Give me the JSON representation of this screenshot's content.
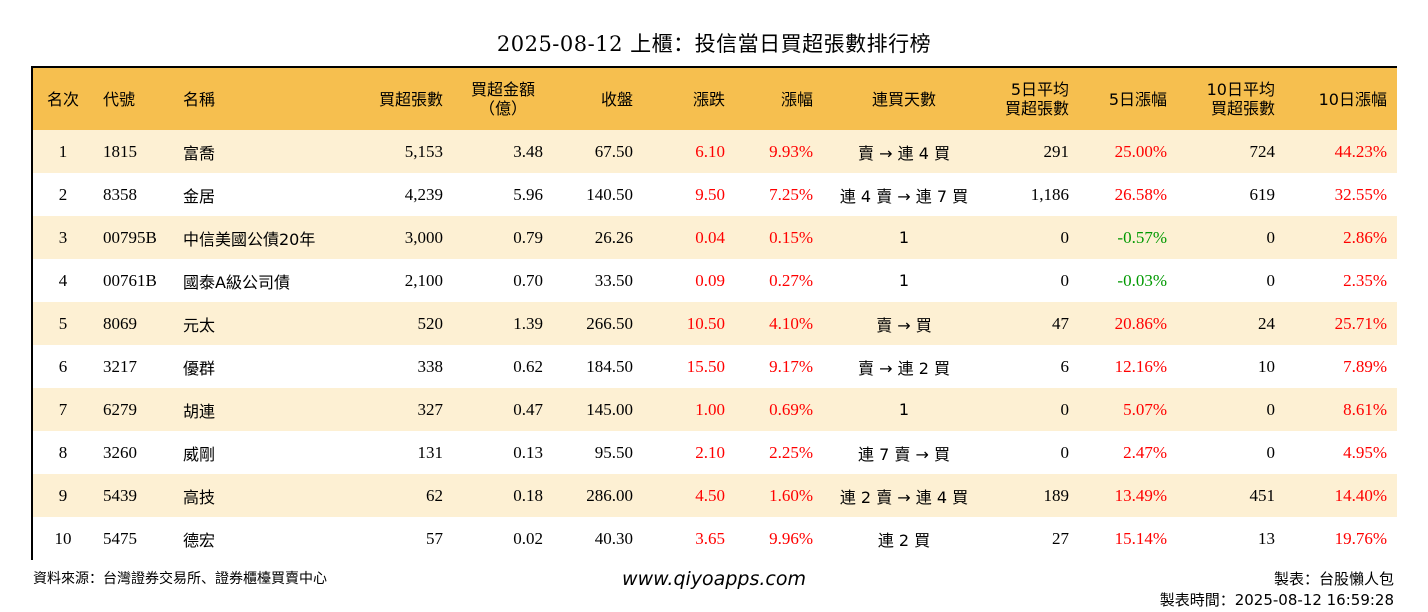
{
  "title": "2025-08-12 上櫃：投信當日買超張數排行榜",
  "headers": {
    "rank": "名次",
    "code": "代號",
    "name": "名稱",
    "buy_lots": "買超張數",
    "buy_amount_1": "買超金額",
    "buy_amount_2": "（億）",
    "close": "收盤",
    "change": "漲跌",
    "pct": "漲幅",
    "streak": "連買天數",
    "avg5_1": "5日平均",
    "avg5_2": "買超張數",
    "pct5": "5日漲幅",
    "avg10_1": "10日平均",
    "avg10_2": "買超張數",
    "pct10": "10日漲幅"
  },
  "rows": [
    {
      "rank": "1",
      "code": "1815",
      "name": "富喬",
      "buy_lots": "5,153",
      "amount": "3.48",
      "close": "67.50",
      "change": "6.10",
      "pct": "9.93%",
      "streak": "賣 → 連 4 買",
      "avg5": "291",
      "pct5": "25.00%",
      "avg10": "724",
      "pct10": "44.23%",
      "pct5_color": "red"
    },
    {
      "rank": "2",
      "code": "8358",
      "name": "金居",
      "buy_lots": "4,239",
      "amount": "5.96",
      "close": "140.50",
      "change": "9.50",
      "pct": "7.25%",
      "streak": "連 4 賣 → 連 7 買",
      "avg5": "1,186",
      "pct5": "26.58%",
      "avg10": "619",
      "pct10": "32.55%",
      "pct5_color": "red"
    },
    {
      "rank": "3",
      "code": "00795B",
      "name": "中信美國公債20年",
      "buy_lots": "3,000",
      "amount": "0.79",
      "close": "26.26",
      "change": "0.04",
      "pct": "0.15%",
      "streak": "1",
      "avg5": "0",
      "pct5": "-0.57%",
      "avg10": "0",
      "pct10": "2.86%",
      "pct5_color": "green"
    },
    {
      "rank": "4",
      "code": "00761B",
      "name": "國泰A級公司債",
      "buy_lots": "2,100",
      "amount": "0.70",
      "close": "33.50",
      "change": "0.09",
      "pct": "0.27%",
      "streak": "1",
      "avg5": "0",
      "pct5": "-0.03%",
      "avg10": "0",
      "pct10": "2.35%",
      "pct5_color": "green"
    },
    {
      "rank": "5",
      "code": "8069",
      "name": "元太",
      "buy_lots": "520",
      "amount": "1.39",
      "close": "266.50",
      "change": "10.50",
      "pct": "4.10%",
      "streak": "賣 → 買",
      "avg5": "47",
      "pct5": "20.86%",
      "avg10": "24",
      "pct10": "25.71%",
      "pct5_color": "red"
    },
    {
      "rank": "6",
      "code": "3217",
      "name": "優群",
      "buy_lots": "338",
      "amount": "0.62",
      "close": "184.50",
      "change": "15.50",
      "pct": "9.17%",
      "streak": "賣 → 連 2 買",
      "avg5": "6",
      "pct5": "12.16%",
      "avg10": "10",
      "pct10": "7.89%",
      "pct5_color": "red"
    },
    {
      "rank": "7",
      "code": "6279",
      "name": "胡連",
      "buy_lots": "327",
      "amount": "0.47",
      "close": "145.00",
      "change": "1.00",
      "pct": "0.69%",
      "streak": "1",
      "avg5": "0",
      "pct5": "5.07%",
      "avg10": "0",
      "pct10": "8.61%",
      "pct5_color": "red"
    },
    {
      "rank": "8",
      "code": "3260",
      "name": "威剛",
      "buy_lots": "131",
      "amount": "0.13",
      "close": "95.50",
      "change": "2.10",
      "pct": "2.25%",
      "streak": "連 7 賣 → 買",
      "avg5": "0",
      "pct5": "2.47%",
      "avg10": "0",
      "pct10": "4.95%",
      "pct5_color": "red"
    },
    {
      "rank": "9",
      "code": "5439",
      "name": "高技",
      "buy_lots": "62",
      "amount": "0.18",
      "close": "286.00",
      "change": "4.50",
      "pct": "1.60%",
      "streak": "連 2 賣 → 連 4 買",
      "avg5": "189",
      "pct5": "13.49%",
      "avg10": "451",
      "pct10": "14.40%",
      "pct5_color": "red"
    },
    {
      "rank": "10",
      "code": "5475",
      "name": "德宏",
      "buy_lots": "57",
      "amount": "0.02",
      "close": "40.30",
      "change": "3.65",
      "pct": "9.96%",
      "streak": "連 2 買",
      "avg5": "27",
      "pct5": "15.14%",
      "avg10": "13",
      "pct10": "19.76%",
      "pct5_color": "red"
    }
  ],
  "footer": {
    "source": "資料來源：台灣證券交易所、證券櫃檯買賣中心",
    "website": "www.qiyoapps.com",
    "maker": "製表：台股懶人包",
    "time": "製表時間：2025-08-12 16:59:28"
  },
  "colors": {
    "header_bg": "#f6bf4f",
    "row_alt_bg": "#fdf0d3",
    "up": "#ff0000",
    "down": "#009900"
  }
}
